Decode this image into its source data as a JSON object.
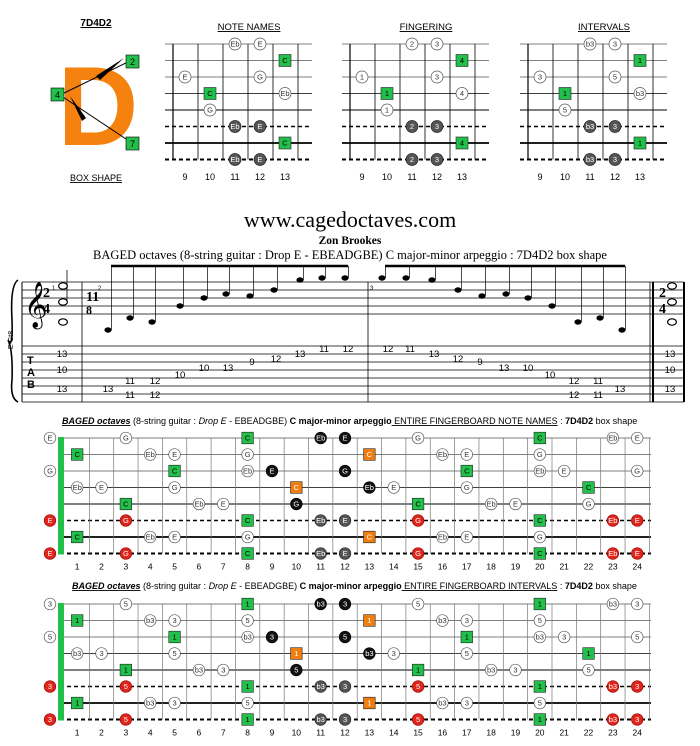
{
  "header": {
    "code": "7D4D2",
    "box_shape_label": "BOX SHAPE",
    "shape_letter": "D",
    "shape_marks": [
      "2",
      "4",
      "7"
    ],
    "panel_titles": [
      "NOTE NAMES",
      "FINGERING",
      "INTERVALS"
    ],
    "fret_numbers": [
      "9",
      "10",
      "11",
      "12",
      "13"
    ]
  },
  "title": {
    "site": "www.cagedoctaves.com",
    "author": "Zon Brookes",
    "subtitle": "BAGED octaves (8-string guitar : Drop E - EBEADGBE) C major-minor arpeggio : 7D4D2 box shape"
  },
  "notation": {
    "instrument": "E-Gt8",
    "time_sig_a": [
      "2",
      "4"
    ],
    "time_sig_b": [
      "11",
      "8"
    ],
    "time_sig_end": [
      "2",
      "4"
    ],
    "tab_letters": [
      "T",
      "A",
      "B"
    ],
    "measure_numbers": [
      "1",
      "2",
      "3",
      "4"
    ],
    "tab_m1": [
      "13",
      "10",
      "13"
    ],
    "tab_m2": [
      "13",
      "11",
      "12",
      "10",
      "10",
      "13",
      "9",
      "12",
      "13",
      "11",
      "12"
    ],
    "tab_m2b": [
      "11",
      "12"
    ],
    "tab_m3": [
      "12",
      "11",
      "13",
      "12",
      "9",
      "13",
      "10",
      "10",
      "12",
      "11",
      "13"
    ],
    "tab_m3b": [
      "12",
      "11"
    ],
    "tab_end": [
      "13",
      "10",
      "13"
    ]
  },
  "board1": {
    "title_bold_italic": "BAGED octaves",
    "title_rest": " (8-string guitar : ",
    "title_drop": "Drop E",
    "title_tuning": " - EBEADGBE) ",
    "title_key": "C major-minor arpeggio",
    "title_entire": " ENTIRE FINGERBOARD NOTE NAMES",
    "title_sep": " : ",
    "title_code": "7D4D2",
    "title_end": " box shape"
  },
  "board2": {
    "title_bold_italic": "BAGED octaves",
    "title_rest": " (8-string guitar : ",
    "title_drop": "Drop E",
    "title_tuning": " - EBEADGBE) ",
    "title_key": "C major-minor arpeggio",
    "title_entire": " ENTIRE FINGERBOARD INTERVALS",
    "title_sep": " : ",
    "title_code": "7D4D2",
    "title_end": " box shape"
  },
  "fretboard_numbers": [
    "1",
    "2",
    "3",
    "4",
    "5",
    "6",
    "7",
    "8",
    "9",
    "10",
    "11",
    "12",
    "13",
    "14",
    "15",
    "16",
    "17",
    "18",
    "19",
    "20",
    "21",
    "22",
    "23",
    "24"
  ],
  "colors": {
    "green": "#22c04a",
    "orange": "#f07d10",
    "red": "#e0251b",
    "dark": "#555555",
    "black": "#111111",
    "shape_orange": "#f5820f"
  }
}
